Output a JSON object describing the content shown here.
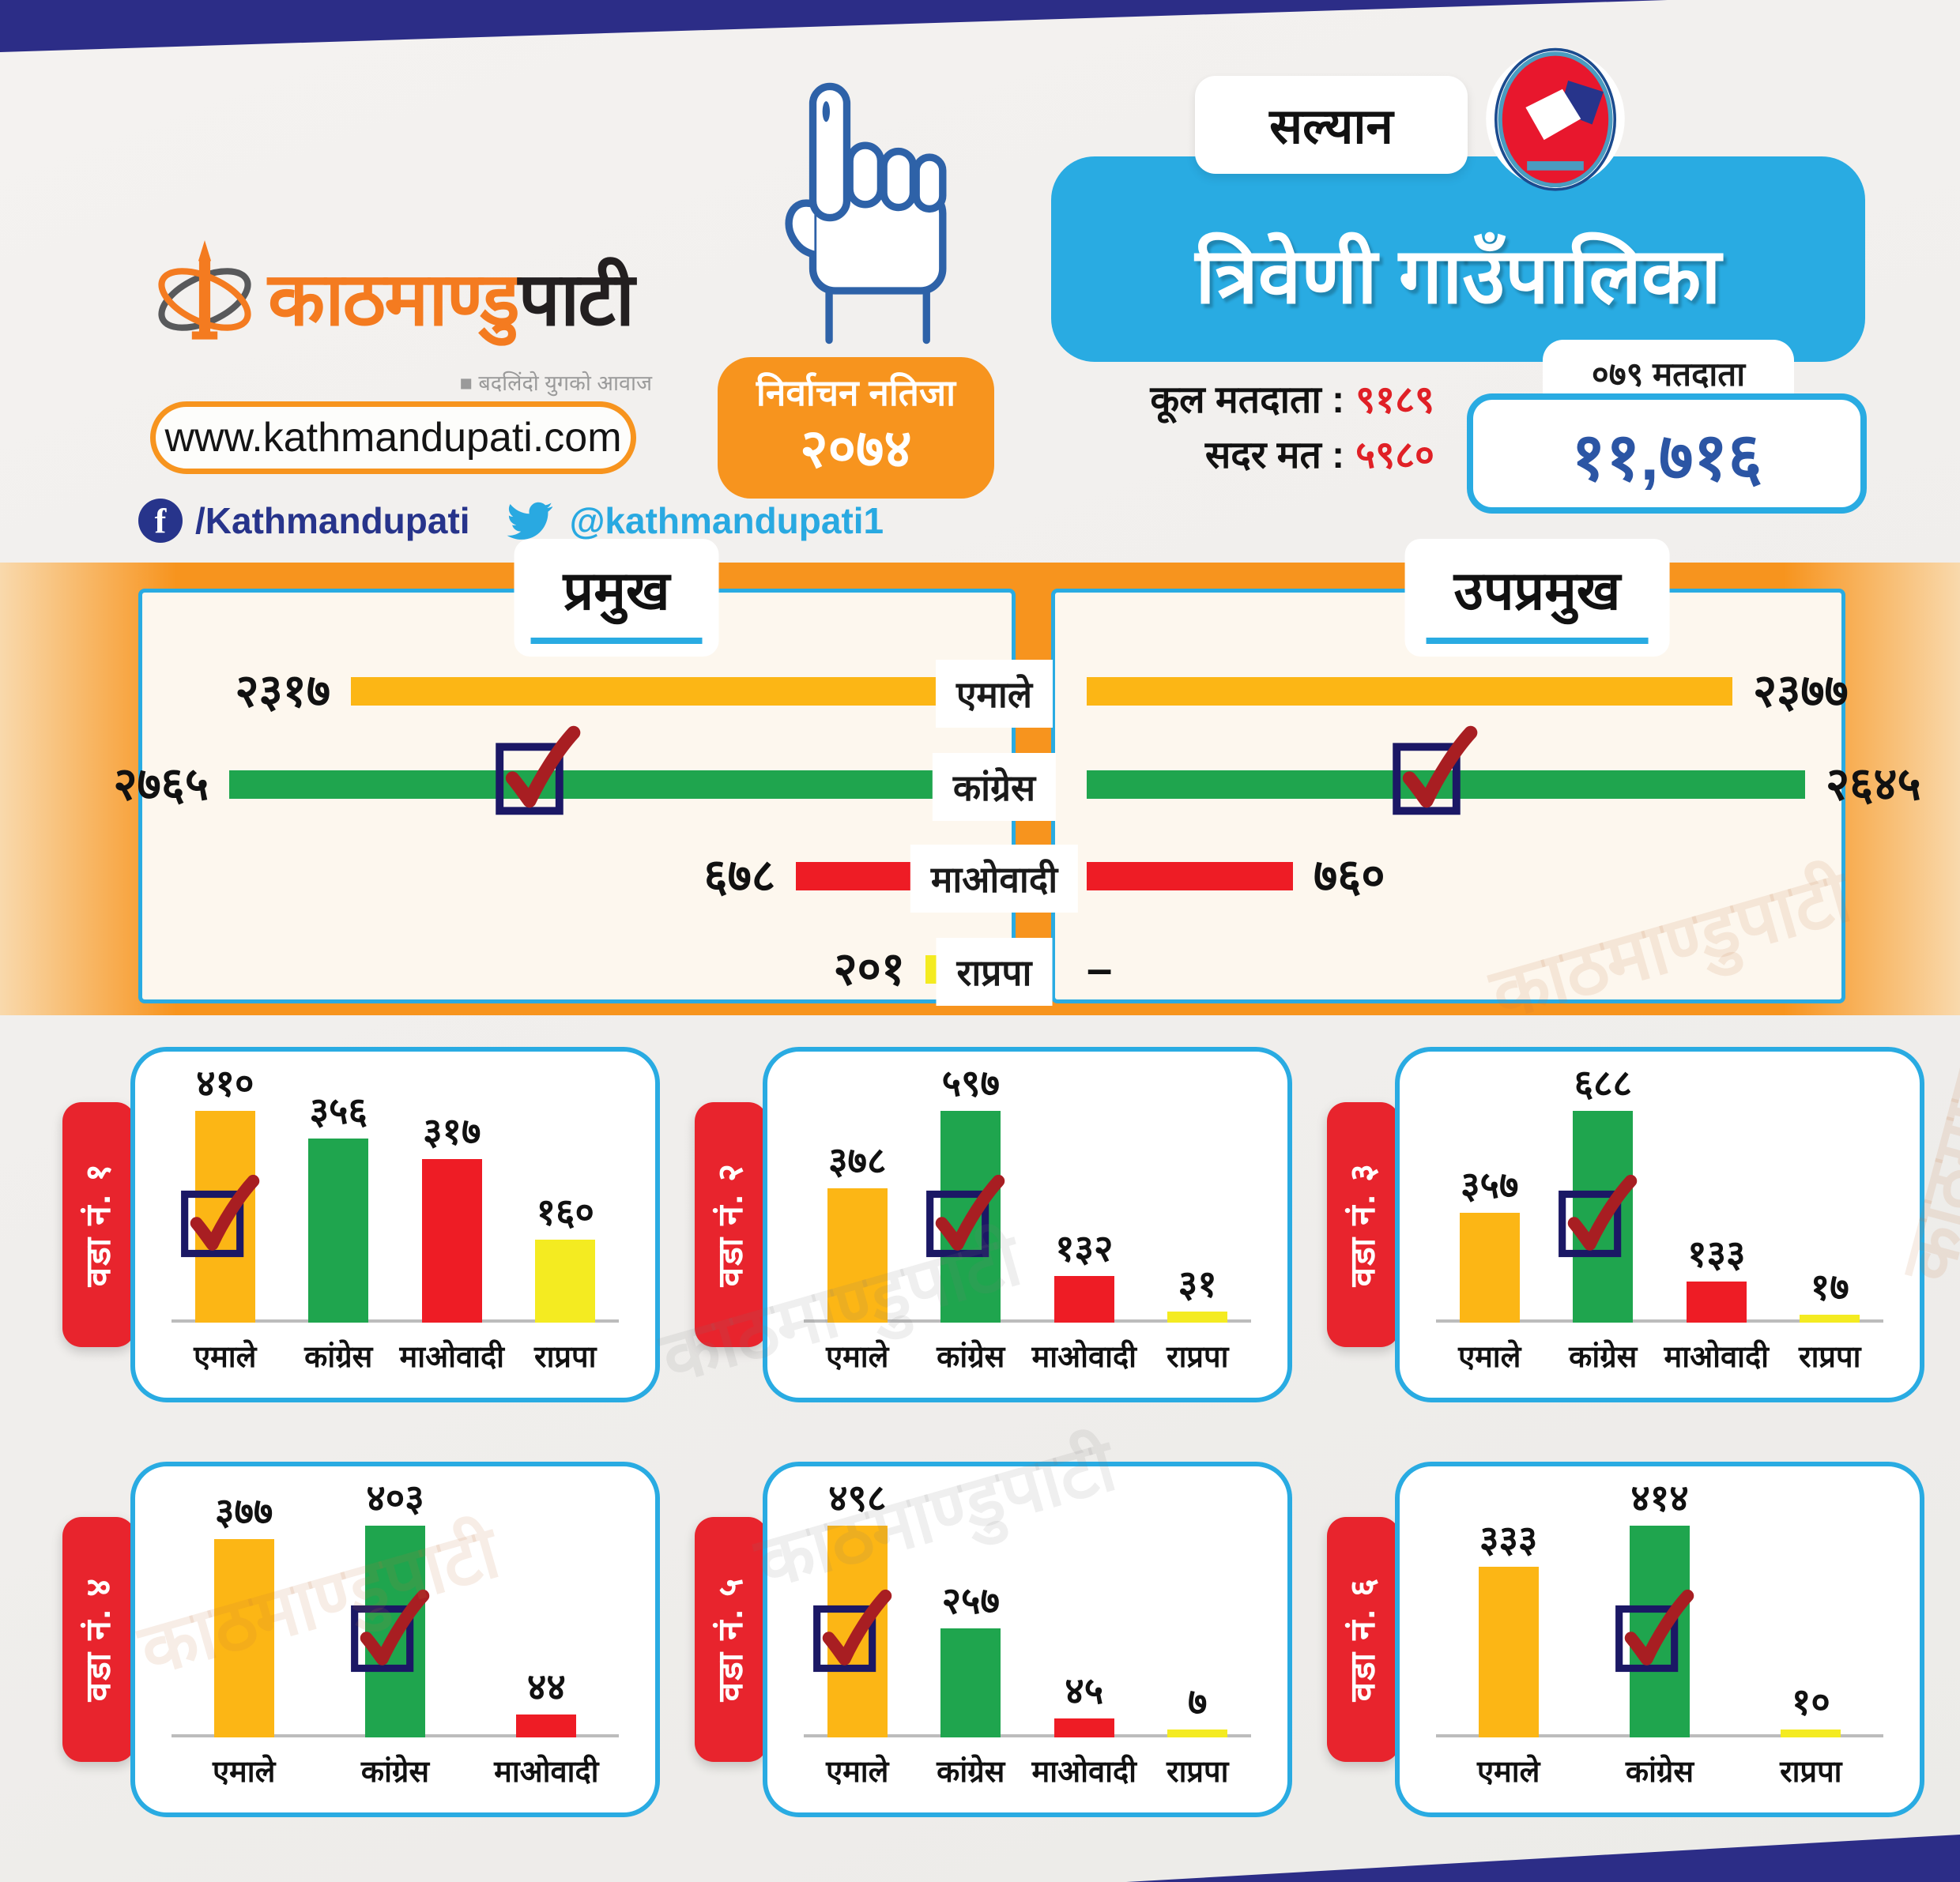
{
  "header": {
    "brand": {
      "part1": "काठमाण्डु",
      "part2": "पाटी",
      "tagline": "■ बदलिंदो युगको आवाज"
    },
    "website": "www.kathmandupati.com",
    "social": {
      "facebook": "/Kathmandupati",
      "twitter": "@kathmandupati1"
    },
    "badge": {
      "line1": "निर्वाचन नतिजा",
      "line2": "२०७४"
    },
    "district": "सल्यान",
    "municipality": "त्रिवेणी गाउँपालिका",
    "stats": {
      "total_voters_label": "कूल मतदाता :",
      "total_voters_value": "९१८९",
      "valid_votes_label": "सदर मत :",
      "valid_votes_value": "५९८०",
      "note": "०७९ मतदाता",
      "registered": "११,७१६"
    }
  },
  "parties": {
    "एमाले": "#fcb615",
    "कांग्रेस": "#1fa54e",
    "माओवादी": "#ee1c25",
    "राप्रपा": "#f4eb21"
  },
  "colors": {
    "navy_band": "#2c2d87",
    "light_blue": "#29abe2",
    "orange": "#f7941e",
    "ward_tab_red": "#e8242d",
    "check_red": "#a81e22",
    "check_box_navy": "#1b1865",
    "stat_value_red": "#e02026",
    "registered_blue": "#2b55a4"
  },
  "watermark": "काठमाण्डुपाटी",
  "chart_data": [
    {
      "type": "bar",
      "orientation": "horizontal",
      "title": "प्रमुख",
      "categories": [
        "एमाले",
        "कांग्रेस",
        "माओवादी",
        "राप्रपा"
      ],
      "values": [
        2317,
        2765,
        678,
        201
      ],
      "value_labels": [
        "२३१७",
        "२७६५",
        "६७८",
        "२०१"
      ],
      "winner": "कांग्रेस",
      "winner_index": 1,
      "xlim": [
        0,
        2765
      ]
    },
    {
      "type": "bar",
      "orientation": "horizontal",
      "title": "उपप्रमुख",
      "categories": [
        "एमाले",
        "कांग्रेस",
        "माओवादी",
        "राप्रपा"
      ],
      "values": [
        2377,
        2645,
        760,
        null
      ],
      "value_labels": [
        "२३७७",
        "२६४५",
        "७६०",
        "–"
      ],
      "winner": "कांग्रेस",
      "winner_index": 1,
      "xlim": [
        0,
        2765
      ]
    },
    {
      "type": "bar",
      "orientation": "vertical",
      "title": "वडा नं. १",
      "categories": [
        "एमाले",
        "कांग्रेस",
        "माओवादी",
        "राप्रपा"
      ],
      "values": [
        410,
        356,
        317,
        160
      ],
      "value_labels": [
        "४१०",
        "३५६",
        "३१७",
        "१६०"
      ],
      "winner": "एमाले",
      "winner_index": 0
    },
    {
      "type": "bar",
      "orientation": "vertical",
      "title": "वडा नं. २",
      "categories": [
        "एमाले",
        "कांग्रेस",
        "माओवादी",
        "राप्रपा"
      ],
      "values": [
        378,
        597,
        132,
        31
      ],
      "value_labels": [
        "३७८",
        "५९७",
        "१३२",
        "३१"
      ],
      "winner": "कांग्रेस",
      "winner_index": 1
    },
    {
      "type": "bar",
      "orientation": "vertical",
      "title": "वडा नं. ३",
      "categories": [
        "एमाले",
        "कांग्रेस",
        "माओवादी",
        "राप्रपा"
      ],
      "values": [
        357,
        688,
        133,
        17
      ],
      "value_labels": [
        "३५७",
        "६८८",
        "१३३",
        "१७"
      ],
      "winner": "कांग्रेस",
      "winner_index": 1
    },
    {
      "type": "bar",
      "orientation": "vertical",
      "title": "वडा नं. ४",
      "categories": [
        "एमाले",
        "कांग्रेस",
        "माओवादी"
      ],
      "values": [
        377,
        403,
        44
      ],
      "value_labels": [
        "३७७",
        "४०३",
        "४४"
      ],
      "winner": "कांग्रेस",
      "winner_index": 1
    },
    {
      "type": "bar",
      "orientation": "vertical",
      "title": "वडा नं. ५",
      "categories": [
        "एमाले",
        "कांग्रेस",
        "माओवादी",
        "राप्रपा"
      ],
      "values": [
        498,
        257,
        45,
        7
      ],
      "value_labels": [
        "४९८",
        "२५७",
        "४५",
        "७"
      ],
      "winner": "एमाले",
      "winner_index": 0
    },
    {
      "type": "bar",
      "orientation": "vertical",
      "title": "वडा नं. ६",
      "categories": [
        "एमाले",
        "कांग्रेस",
        "राप्रपा"
      ],
      "values": [
        333,
        414,
        10
      ],
      "value_labels": [
        "३३३",
        "४१४",
        "१०"
      ],
      "winner": "कांग्रेस",
      "winner_index": 1
    }
  ]
}
